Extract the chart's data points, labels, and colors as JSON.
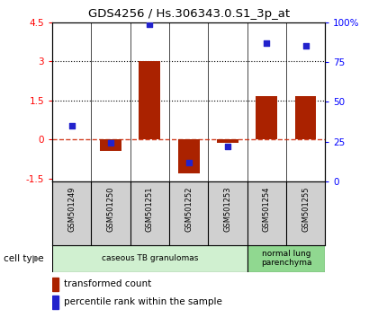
{
  "title": "GDS4256 / Hs.306343.0.S1_3p_at",
  "samples": [
    "GSM501249",
    "GSM501250",
    "GSM501251",
    "GSM501252",
    "GSM501253",
    "GSM501254",
    "GSM501255"
  ],
  "transformed_count": [
    0.0,
    -0.45,
    3.0,
    -1.3,
    -0.12,
    1.65,
    1.65
  ],
  "percentile_rank_right": [
    35,
    24,
    99,
    12,
    22,
    87,
    85
  ],
  "ylim_left": [
    -1.6,
    4.5
  ],
  "ylim_right": [
    0,
    100
  ],
  "yticks_left": [
    -1.5,
    0,
    1.5,
    3,
    4.5
  ],
  "ytick_labels_left": [
    "-1.5",
    "0",
    "1.5",
    "3",
    "4.5"
  ],
  "yticks_right": [
    0,
    25,
    50,
    75,
    100
  ],
  "ytick_labels_right": [
    "0",
    "25",
    "50",
    "75",
    "100%"
  ],
  "hlines": [
    1.5,
    3.0
  ],
  "bar_color": "#aa2200",
  "dot_color": "#2222cc",
  "zero_line_color": "#cc2200",
  "cell_type_groups": [
    {
      "label": "caseous TB granulomas",
      "start": 0,
      "end": 5,
      "color": "#d0f0d0"
    },
    {
      "label": "normal lung\nparenchyma",
      "start": 5,
      "end": 7,
      "color": "#90d890"
    }
  ],
  "legend_bar_label": "transformed count",
  "legend_dot_label": "percentile rank within the sample",
  "cell_type_label": "cell type",
  "sample_label_bg": "#d0d0d0",
  "bar_width": 0.55
}
